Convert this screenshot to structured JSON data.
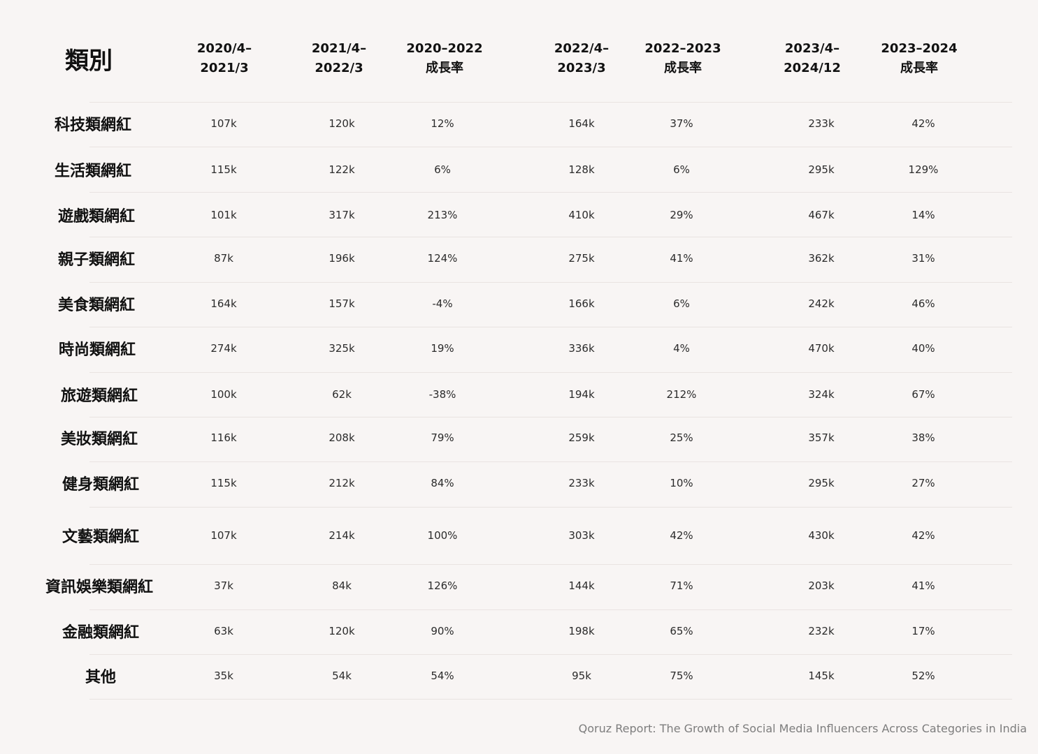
{
  "chart_data": {
    "type": "table",
    "title": "",
    "corner_label": "類別",
    "columns": [
      [
        "2020/4–",
        "2021/3"
      ],
      [
        "2021/4–",
        "2022/3"
      ],
      [
        "2020–2022",
        "成長率"
      ],
      [
        "2022/4–",
        "2023/3"
      ],
      [
        "2022–2023",
        "成長率"
      ],
      [
        "2023/4–",
        "2024/12"
      ],
      [
        "2023–2024",
        "成長率"
      ]
    ],
    "rows": [
      {
        "category": "科技類網紅",
        "values": [
          "107k",
          "120k",
          "12%",
          "164k",
          "37%",
          "233k",
          "42%"
        ]
      },
      {
        "category": "生活類網紅",
        "values": [
          "115k",
          "122k",
          "6%",
          "128k",
          "6%",
          "295k",
          "129%"
        ]
      },
      {
        "category": "遊戲類網紅",
        "values": [
          "101k",
          "317k",
          "213%",
          "410k",
          "29%",
          "467k",
          "14%"
        ]
      },
      {
        "category": "親子類網紅",
        "values": [
          "87k",
          "196k",
          "124%",
          "275k",
          "41%",
          "362k",
          "31%"
        ]
      },
      {
        "category": "美食類網紅",
        "values": [
          "164k",
          "157k",
          "-4%",
          "166k",
          "6%",
          "242k",
          "46%"
        ]
      },
      {
        "category": "時尚類網紅",
        "values": [
          "274k",
          "325k",
          "19%",
          "336k",
          "4%",
          "470k",
          "40%"
        ]
      },
      {
        "category": "旅遊類網紅",
        "values": [
          "100k",
          "62k",
          "-38%",
          "194k",
          "212%",
          "324k",
          "67%"
        ]
      },
      {
        "category": "美妝類網紅",
        "values": [
          "116k",
          "208k",
          "79%",
          "259k",
          "25%",
          "357k",
          "38%"
        ]
      },
      {
        "category": "健身類網紅",
        "values": [
          "115k",
          "212k",
          "84%",
          "233k",
          "10%",
          "295k",
          "27%"
        ]
      },
      {
        "category": "文藝類網紅",
        "values": [
          "107k",
          "214k",
          "100%",
          "303k",
          "42%",
          "430k",
          "42%"
        ]
      },
      {
        "category": "資訊娛樂類網紅",
        "values": [
          "37k",
          "84k",
          "126%",
          "144k",
          "71%",
          "203k",
          "41%"
        ]
      },
      {
        "category": "金融類網紅",
        "values": [
          "63k",
          "120k",
          "90%",
          "198k",
          "65%",
          "232k",
          "17%"
        ]
      },
      {
        "category": "其他",
        "values": [
          "35k",
          "54k",
          "54%",
          "95k",
          "75%",
          "145k",
          "52%"
        ]
      }
    ],
    "source": "Qoruz Report: The Growth of Social Media Influencers Across Categories in India"
  },
  "colors": {
    "background": "#f8f5f4",
    "text": "#1a1a1a",
    "rule": "#e9e3e1",
    "source_text": "#7d7d7d"
  }
}
